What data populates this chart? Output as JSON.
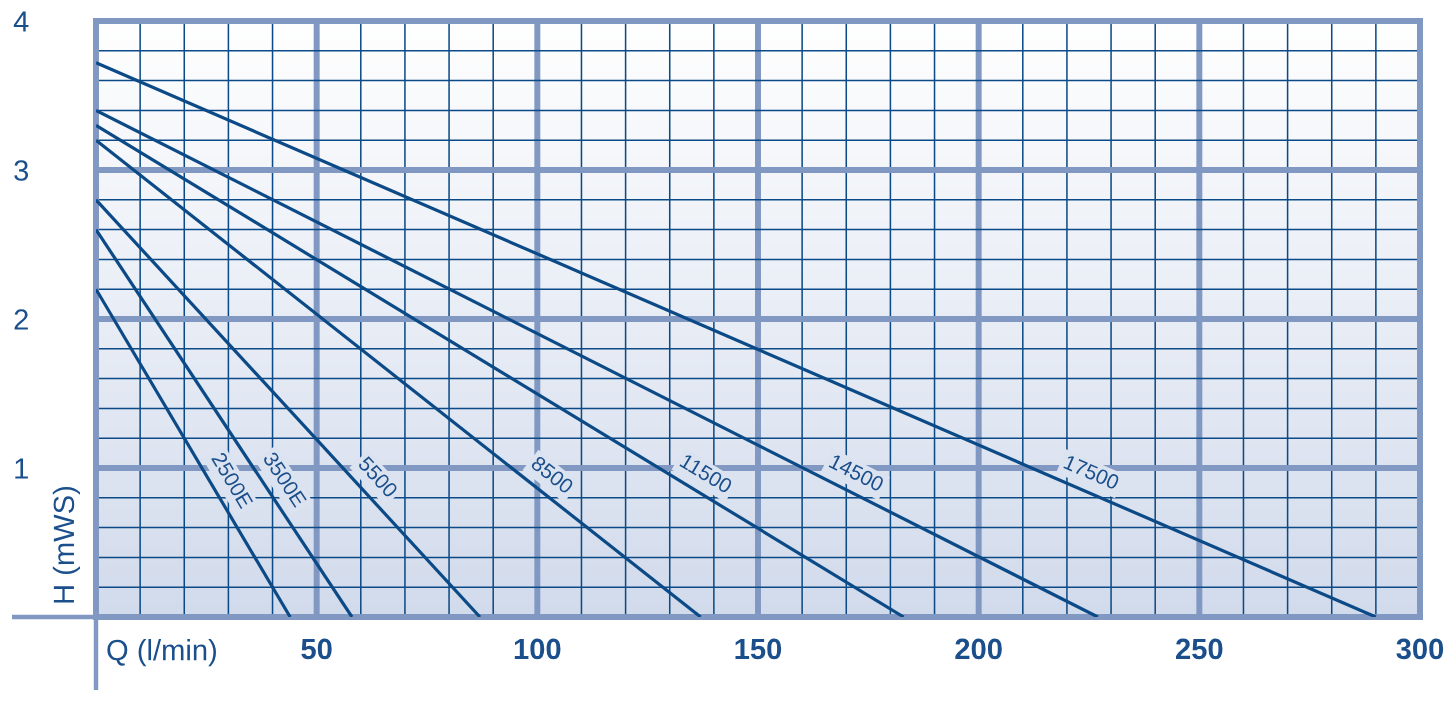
{
  "chart_data": {
    "type": "line",
    "xlabel": "Q (l/min)",
    "ylabel": "H (mWS)",
    "xlim": [
      0,
      300
    ],
    "ylim": [
      0,
      4
    ],
    "xticks": [
      {
        "value": 10,
        "label": null
      },
      {
        "value": 20,
        "label": null
      },
      {
        "value": 30,
        "label": null
      },
      {
        "value": 40,
        "label": null
      },
      50,
      {
        "value": 60,
        "label": null
      },
      {
        "value": 70,
        "label": null
      },
      {
        "value": 80,
        "label": null
      },
      {
        "value": 90,
        "label": null
      },
      100,
      {
        "value": 110,
        "label": null
      },
      {
        "value": 120,
        "label": null
      },
      {
        "value": 130,
        "label": null
      },
      {
        "value": 140,
        "label": null
      },
      150,
      {
        "value": 160,
        "label": null
      },
      {
        "value": 170,
        "label": null
      },
      {
        "value": 180,
        "label": null
      },
      {
        "value": 190,
        "label": null
      },
      200,
      {
        "value": 210,
        "label": null
      },
      {
        "value": 220,
        "label": null
      },
      {
        "value": 230,
        "label": null
      },
      {
        "value": 240,
        "label": null
      },
      250,
      {
        "value": 260,
        "label": null
      },
      {
        "value": 270,
        "label": null
      },
      {
        "value": 280,
        "label": null
      },
      {
        "value": 290,
        "label": null
      },
      300
    ],
    "yticks": [
      {
        "value": 0.2,
        "label": null
      },
      {
        "value": 0.4,
        "label": null
      },
      {
        "value": 0.6,
        "label": null
      },
      {
        "value": 0.8,
        "label": null
      },
      1,
      {
        "value": 1.2,
        "label": null
      },
      {
        "value": 1.4,
        "label": null
      },
      {
        "value": 1.6,
        "label": null
      },
      {
        "value": 1.8,
        "label": null
      },
      2,
      {
        "value": 2.2,
        "label": null
      },
      {
        "value": 2.4,
        "label": null
      },
      {
        "value": 2.6,
        "label": null
      },
      {
        "value": 2.8,
        "label": null
      },
      3,
      {
        "value": 3.2,
        "label": null
      },
      {
        "value": 3.4,
        "label": null
      },
      {
        "value": 3.6,
        "label": null
      },
      {
        "value": 3.8,
        "label": null
      },
      4
    ],
    "grid": true,
    "line_style": "solid",
    "series": [
      {
        "name": "2500E",
        "color": "#0b4a86",
        "x": [
          0,
          44
        ],
        "values": [
          2.2,
          0
        ]
      },
      {
        "name": "3500E",
        "color": "#0b4a86",
        "x": [
          0,
          58
        ],
        "values": [
          2.6,
          0
        ]
      },
      {
        "name": "5500",
        "color": "#0b4a86",
        "x": [
          0,
          87
        ],
        "values": [
          2.8,
          0
        ]
      },
      {
        "name": "8500",
        "color": "#0b4a86",
        "x": [
          0,
          137
        ],
        "values": [
          3.2,
          0
        ]
      },
      {
        "name": "11500",
        "color": "#0b4a86",
        "x": [
          0,
          183
        ],
        "values": [
          3.3,
          0
        ]
      },
      {
        "name": "14500",
        "color": "#0b4a86",
        "x": [
          0,
          227
        ],
        "values": [
          3.4,
          0
        ]
      },
      {
        "name": "17500",
        "color": "#0b4a86",
        "x": [
          0,
          290
        ],
        "values": [
          3.72,
          0
        ]
      }
    ]
  }
}
